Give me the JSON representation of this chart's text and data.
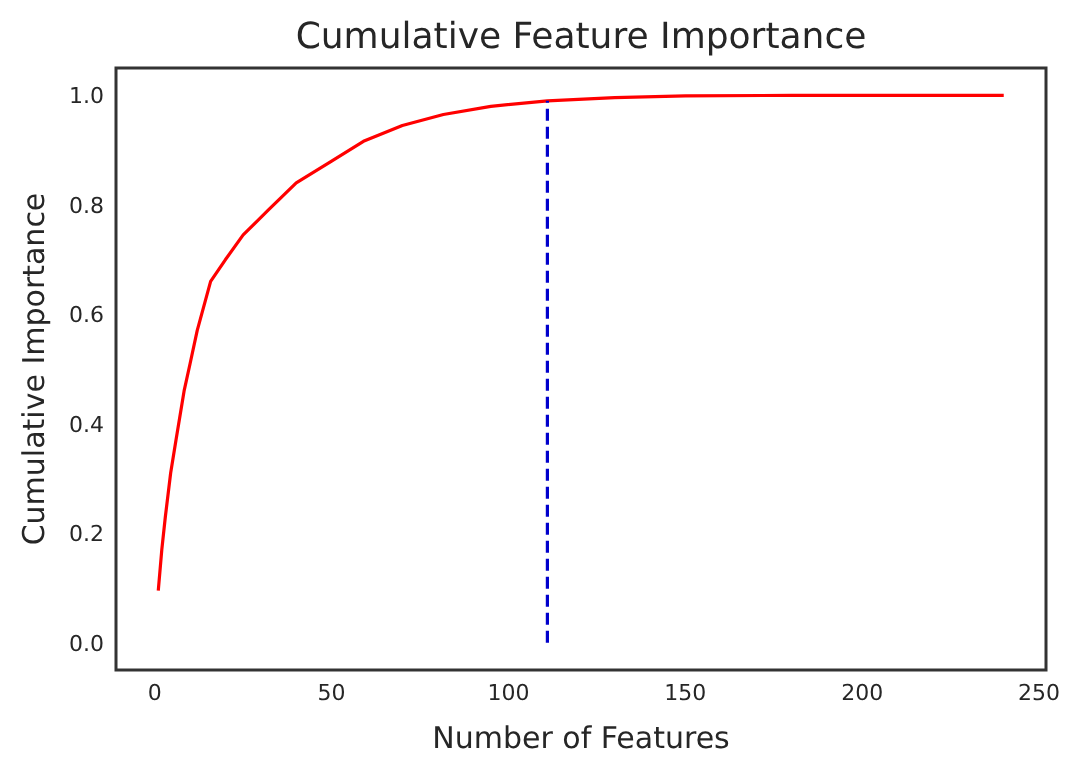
{
  "chart_data": {
    "type": "line",
    "title": "Cumulative Feature Importance",
    "xlabel": "Number of Features",
    "ylabel": "Cumulative Importance",
    "xlim": [
      -10.95,
      251.95
    ],
    "ylim": [
      -0.05,
      1.05
    ],
    "xticks": [
      0,
      50,
      100,
      150,
      200,
      250
    ],
    "yticks": [
      {
        "value": 0,
        "label": "0.0"
      },
      {
        "value": 0.2,
        "label": "0.2"
      },
      {
        "value": 0.4,
        "label": "0.4"
      },
      {
        "value": 0.6,
        "label": "0.6"
      },
      {
        "value": 0.8,
        "label": "0.8"
      },
      {
        "value": 1,
        "label": "1.0"
      }
    ],
    "grid": false,
    "marker": "none",
    "series": [
      {
        "color": "#ff0000",
        "line_style": "solid",
        "x": [
          1,
          2,
          3,
          4.5,
          6,
          8.3,
          10,
          12,
          15.8,
          20,
          25,
          32,
          40,
          50,
          59,
          70,
          81.6,
          95,
          111,
          130,
          150,
          180,
          210,
          240
        ],
        "values": [
          0.095,
          0.17,
          0.23,
          0.31,
          0.37,
          0.46,
          0.51,
          0.57,
          0.66,
          0.7,
          0.745,
          0.79,
          0.84,
          0.88,
          0.916,
          0.945,
          0.965,
          0.98,
          0.99,
          0.996,
          0.999,
          1,
          1,
          1
        ]
      },
      {
        "color": "#0000cc",
        "line_style": "dashed",
        "x": [
          111,
          111
        ],
        "values": [
          0,
          0.99
        ]
      }
    ]
  }
}
